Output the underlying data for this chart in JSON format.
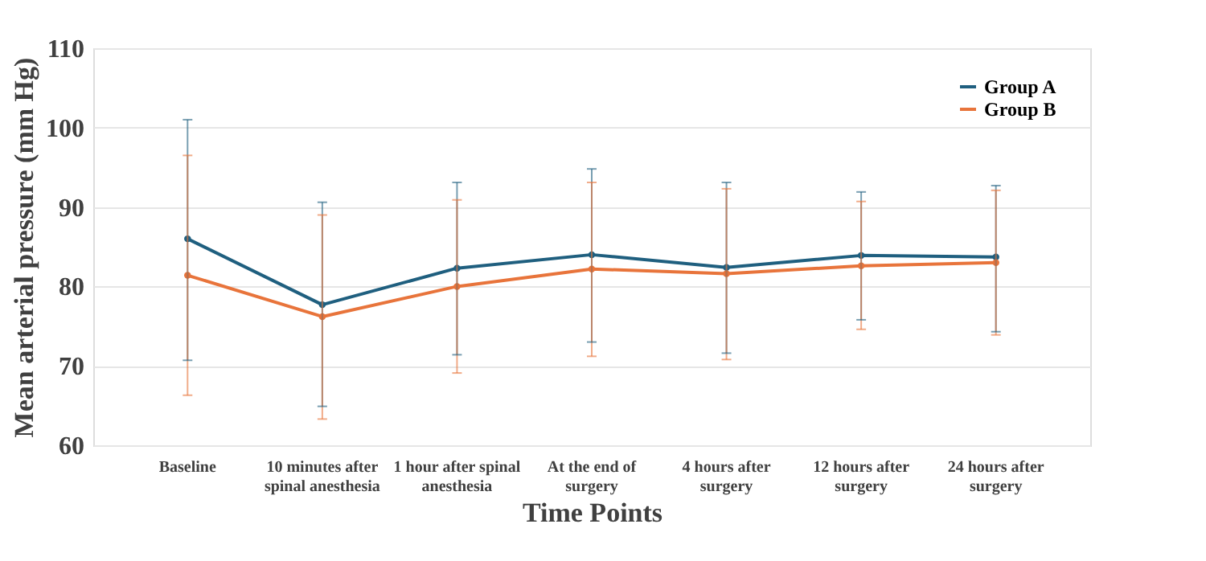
{
  "chart_data": {
    "type": "line",
    "xlabel": "Time Points",
    "ylabel": "Mean arterial pressure (mm Hg)",
    "categories": [
      "Baseline",
      "10 minutes after spinal anesthesia",
      "1 hour after spinal anesthesia",
      "At the end of surgery",
      "4 hours after surgery",
      "12 hours after surgery",
      "24 hours after surgery"
    ],
    "series": [
      {
        "name": "Group A",
        "color": "#1f5f7f",
        "values": [
          86,
          77.7,
          82.3,
          84,
          82.4,
          83.9,
          83.7
        ],
        "errors": [
          [
            70.7,
            101
          ],
          [
            64.9,
            90.6
          ],
          [
            71.4,
            93.1
          ],
          [
            73,
            94.8
          ],
          [
            71.6,
            93.1
          ],
          [
            75.8,
            91.9
          ],
          [
            74.3,
            92.7
          ]
        ]
      },
      {
        "name": "Group  B",
        "color": "#e8743b",
        "values": [
          81.4,
          76.2,
          80,
          82.2,
          81.6,
          82.6,
          83
        ],
        "errors": [
          [
            66.3,
            96.5
          ],
          [
            63.3,
            89
          ],
          [
            69.1,
            90.9
          ],
          [
            71.2,
            93.1
          ],
          [
            70.8,
            92.3
          ],
          [
            74.6,
            90.7
          ],
          [
            73.9,
            92.1
          ]
        ]
      }
    ],
    "ylim": [
      60,
      110
    ],
    "yticks": [
      60,
      70,
      80,
      90,
      100,
      110
    ],
    "grid": "y",
    "legend": "top right",
    "marker": "circle",
    "line_style": "solid"
  }
}
